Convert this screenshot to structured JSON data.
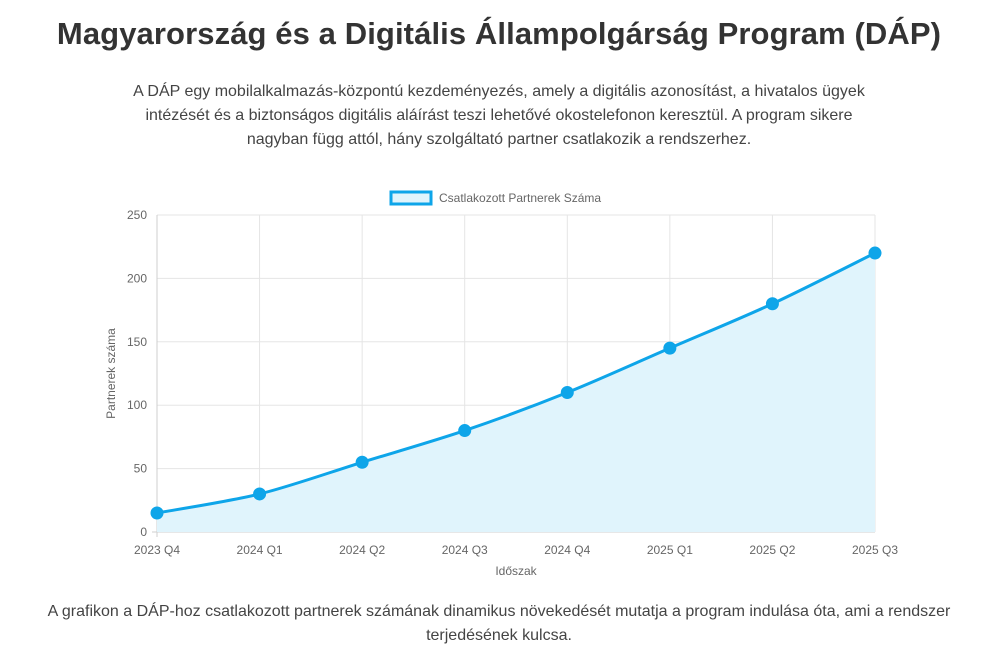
{
  "page": {
    "title": "Magyarország és a Digitális Állampolgárság Program (DÁP)",
    "intro": "A DÁP egy mobilalkalmazás-központú kezdeményezés, amely a digitális azonosítást, a hivatalos ügyek intézését és a biztonságos digitális aláírást teszi lehetővé okostelefonon keresztül. A program sikere nagyban függ attól, hány szolgáltató partner csatlakozik a rendszerhez.",
    "footer": "A grafikon a DÁP-hoz csatlakozott partnerek számának dinamikus növekedését mutatja a program indulása óta, ami a rendszer terjedésének kulcsa."
  },
  "chart_data": {
    "type": "area",
    "categories": [
      "2023 Q4",
      "2024 Q1",
      "2024 Q2",
      "2024 Q3",
      "2024 Q4",
      "2025 Q1",
      "2025 Q2",
      "2025 Q3"
    ],
    "series": [
      {
        "name": "Csatlakozott Partnerek Száma",
        "values": [
          15,
          30,
          55,
          80,
          110,
          145,
          180,
          220
        ],
        "color": "#0ea5e9",
        "fill": "#e0f4fc"
      }
    ],
    "xlabel": "Időszak",
    "ylabel": "Partnerek száma",
    "ylim": [
      0,
      250
    ],
    "yticks": [
      0,
      50,
      100,
      150,
      200,
      250
    ],
    "grid": true,
    "legend": "top-center"
  }
}
